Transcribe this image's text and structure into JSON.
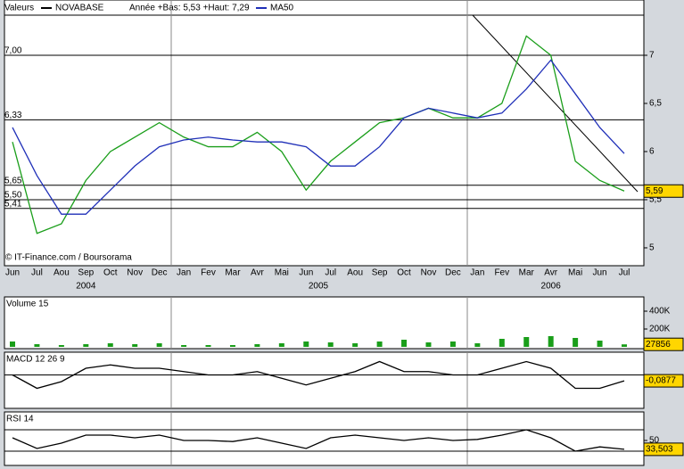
{
  "chart_data": [
    {
      "type": "line",
      "title": "Valeurs",
      "subtitle": "Année +Bas: 5,53 +Haut: 7,29",
      "source": "© IT-Finance.com / Boursorama",
      "categories": [
        "Jun",
        "Jul",
        "Aou",
        "Sep",
        "Oct",
        "Nov",
        "Dec",
        "Jan",
        "Fev",
        "Mar",
        "Avr",
        "Mai",
        "Jun",
        "Jul",
        "Aou",
        "Sep",
        "Oct",
        "Nov",
        "Dec",
        "Jan",
        "Fev",
        "Mar",
        "Avr",
        "Mai",
        "Jun",
        "Jul"
      ],
      "years": [
        "2004",
        "2005",
        "2006"
      ],
      "series": [
        {
          "name": "NOVABASE",
          "color": "#1a9e1a",
          "values": [
            6.1,
            5.15,
            5.25,
            5.7,
            6.0,
            6.15,
            6.3,
            6.15,
            6.05,
            6.05,
            6.2,
            6.0,
            5.6,
            5.9,
            6.1,
            6.3,
            6.35,
            6.45,
            6.35,
            6.35,
            6.5,
            7.2,
            7.0,
            5.9,
            5.7,
            5.59
          ]
        },
        {
          "name": "MA50",
          "color": "#1f2fb8",
          "values": [
            6.25,
            5.75,
            5.35,
            5.35,
            5.6,
            5.85,
            6.05,
            6.12,
            6.15,
            6.12,
            6.1,
            6.1,
            6.05,
            5.85,
            5.85,
            6.05,
            6.35,
            6.45,
            6.4,
            6.35,
            6.4,
            6.65,
            6.95,
            6.6,
            6.25,
            5.98
          ]
        }
      ],
      "ylim": [
        4.82,
        7.5
      ],
      "yticks": [
        7,
        {
          "value": 6.5,
          "label": "6,5"
        },
        6,
        {
          "value": 5.5,
          "label": "5,5"
        },
        5
      ],
      "levels": [
        {
          "value": 7,
          "label": "7,00"
        },
        {
          "value": 6.33,
          "label": "6,33"
        },
        {
          "value": 5.65,
          "label": "5,65"
        },
        {
          "value": 5.5,
          "label": "5,50"
        },
        {
          "value": 5.41,
          "label": "5,41"
        }
      ],
      "last_value": {
        "value": 5.59,
        "label": "5,59"
      }
    },
    {
      "type": "bar",
      "title": "Volume 15",
      "color": "#1a9e1a",
      "values": [
        60000,
        30000,
        20000,
        30000,
        40000,
        30000,
        40000,
        20000,
        20000,
        20000,
        30000,
        40000,
        60000,
        50000,
        40000,
        60000,
        80000,
        50000,
        60000,
        40000,
        90000,
        110000,
        120000,
        100000,
        70000,
        27856
      ],
      "ylim": [
        0,
        540000
      ],
      "yticks": [
        {
          "value": 200000,
          "label": "200K"
        },
        {
          "value": 400000,
          "label": "400K"
        }
      ],
      "last_value": {
        "value": 27856,
        "label": "27856"
      }
    },
    {
      "type": "line",
      "title": "MACD 12 26 9",
      "color": "#000000",
      "values": [
        0,
        -0.2,
        -0.1,
        0.1,
        0.15,
        0.1,
        0.1,
        0.05,
        0,
        0,
        0.05,
        -0.05,
        -0.15,
        -0.05,
        0.05,
        0.2,
        0.05,
        0.05,
        0,
        0,
        0.1,
        0.2,
        0.1,
        -0.2,
        -0.2,
        -0.0877
      ],
      "ylim": [
        -0.5,
        0.3
      ],
      "last_value": {
        "value": -0.0877,
        "label": "-0,0877"
      }
    },
    {
      "type": "line",
      "title": "RSI 14",
      "color": "#000000",
      "values": [
        55,
        35,
        45,
        60,
        60,
        55,
        60,
        50,
        50,
        48,
        55,
        45,
        35,
        55,
        60,
        55,
        50,
        55,
        50,
        52,
        60,
        70,
        55,
        30,
        38,
        33.503
      ],
      "ylim": [
        0,
        100
      ],
      "yticks": [
        50
      ],
      "levels": [
        30,
        70
      ],
      "last_value": {
        "value": 33.503,
        "label": "33,503"
      }
    }
  ]
}
